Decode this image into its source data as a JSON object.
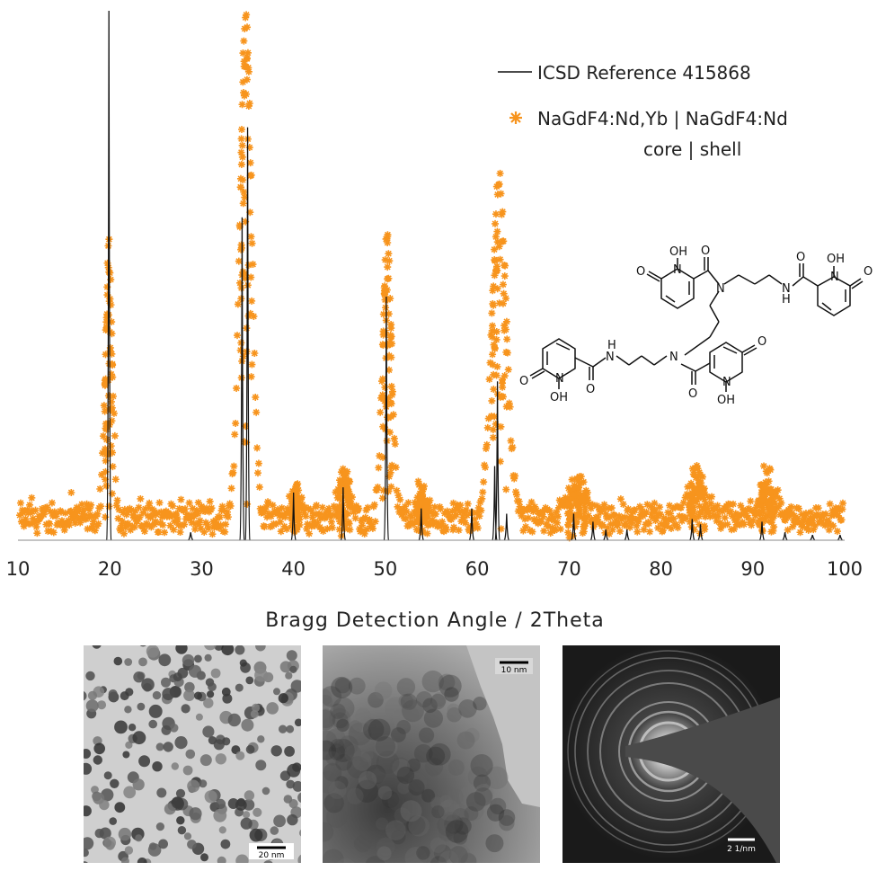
{
  "chart_data": {
    "type": "line",
    "xlabel": "Bragg Detection Angle / 2Theta",
    "ylabel": "",
    "xlim": [
      10,
      100
    ],
    "ylim": [
      0,
      100
    ],
    "xticks": [
      10,
      20,
      30,
      40,
      50,
      60,
      70,
      80,
      90,
      100
    ],
    "yticks_shown": false,
    "grid": false,
    "legend": {
      "placement": "top-right",
      "entries": [
        "ICSD Reference 415868",
        "NaGdF4:Nd,Yb | NaGdF4:Nd",
        "core | shell"
      ]
    },
    "series": [
      {
        "name": "ICSD Reference 415868",
        "style": "stick",
        "color": "#111111",
        "peaks": [
          {
            "x": 19.9,
            "y": 100
          },
          {
            "x": 28.8,
            "y": 1.5
          },
          {
            "x": 34.4,
            "y": 61
          },
          {
            "x": 35.0,
            "y": 78
          },
          {
            "x": 40.0,
            "y": 9
          },
          {
            "x": 45.4,
            "y": 10
          },
          {
            "x": 50.1,
            "y": 46
          },
          {
            "x": 53.9,
            "y": 6
          },
          {
            "x": 59.4,
            "y": 6
          },
          {
            "x": 61.9,
            "y": 14
          },
          {
            "x": 62.2,
            "y": 30
          },
          {
            "x": 63.2,
            "y": 5
          },
          {
            "x": 70.5,
            "y": 5
          },
          {
            "x": 72.6,
            "y": 3.5
          },
          {
            "x": 74.0,
            "y": 2
          },
          {
            "x": 76.3,
            "y": 2
          },
          {
            "x": 83.4,
            "y": 4
          },
          {
            "x": 84.3,
            "y": 3
          },
          {
            "x": 91.0,
            "y": 3.5
          },
          {
            "x": 93.5,
            "y": 1.5
          },
          {
            "x": 96.5,
            "y": 1
          },
          {
            "x": 99.5,
            "y": 1
          }
        ]
      },
      {
        "name": "NaGdF4:Nd,Yb | NaGdF4:Nd",
        "style": "markers",
        "marker": "asterisk",
        "color": "#f7941d",
        "baseline": 3.5,
        "noise": 4,
        "peaks": [
          {
            "x": 19.9,
            "y": 50,
            "w": 0.55
          },
          {
            "x": 34.8,
            "y": 96,
            "w": 0.9
          },
          {
            "x": 40.2,
            "y": 6,
            "w": 0.6
          },
          {
            "x": 45.5,
            "y": 9,
            "w": 0.8
          },
          {
            "x": 50.2,
            "y": 54,
            "w": 0.7
          },
          {
            "x": 54.0,
            "y": 5,
            "w": 0.8
          },
          {
            "x": 62.4,
            "y": 64,
            "w": 1.1
          },
          {
            "x": 70.8,
            "y": 7,
            "w": 1.2
          },
          {
            "x": 84.0,
            "y": 8,
            "w": 1.1
          },
          {
            "x": 91.5,
            "y": 7,
            "w": 1.1
          }
        ]
      }
    ]
  },
  "structure": {
    "atoms": {
      "oh": "OH",
      "o": "O",
      "n": "N",
      "nh": "N"
    },
    "h_label": "H"
  },
  "micrographs": [
    {
      "name": "tem-low-mag",
      "scale_label": "20 nm"
    },
    {
      "name": "hrtem",
      "scale_label": "10 nm"
    },
    {
      "name": "saed-pattern",
      "scale_label": "2 1/nm"
    }
  ]
}
